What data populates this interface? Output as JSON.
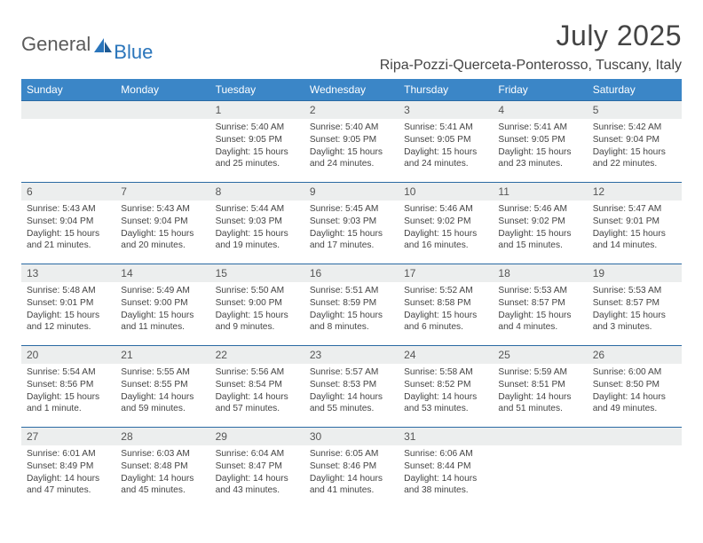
{
  "brand": {
    "text1": "General",
    "text2": "Blue",
    "color1": "#5b5b5b",
    "color2": "#2a75bb"
  },
  "title": "July 2025",
  "location": "Ripa-Pozzi-Querceta-Ponterosso, Tuscany, Italy",
  "colors": {
    "header_bg": "#3b86c7",
    "header_text": "#ffffff",
    "row_divider": "#2a6aa3",
    "daynum_bg": "#eceeee",
    "body_text": "#444444"
  },
  "font": {
    "family": "Arial",
    "title_size": 32,
    "location_size": 16,
    "th_size": 12,
    "daynum_size": 12,
    "body_size": 10.2
  },
  "weekdays": [
    "Sunday",
    "Monday",
    "Tuesday",
    "Wednesday",
    "Thursday",
    "Friday",
    "Saturday"
  ],
  "weeks": [
    [
      {
        "n": "",
        "sunrise": "",
        "sunset": "",
        "daylight": ""
      },
      {
        "n": "",
        "sunrise": "",
        "sunset": "",
        "daylight": ""
      },
      {
        "n": "1",
        "sunrise": "5:40 AM",
        "sunset": "9:05 PM",
        "daylight": "15 hours and 25 minutes."
      },
      {
        "n": "2",
        "sunrise": "5:40 AM",
        "sunset": "9:05 PM",
        "daylight": "15 hours and 24 minutes."
      },
      {
        "n": "3",
        "sunrise": "5:41 AM",
        "sunset": "9:05 PM",
        "daylight": "15 hours and 24 minutes."
      },
      {
        "n": "4",
        "sunrise": "5:41 AM",
        "sunset": "9:05 PM",
        "daylight": "15 hours and 23 minutes."
      },
      {
        "n": "5",
        "sunrise": "5:42 AM",
        "sunset": "9:04 PM",
        "daylight": "15 hours and 22 minutes."
      }
    ],
    [
      {
        "n": "6",
        "sunrise": "5:43 AM",
        "sunset": "9:04 PM",
        "daylight": "15 hours and 21 minutes."
      },
      {
        "n": "7",
        "sunrise": "5:43 AM",
        "sunset": "9:04 PM",
        "daylight": "15 hours and 20 minutes."
      },
      {
        "n": "8",
        "sunrise": "5:44 AM",
        "sunset": "9:03 PM",
        "daylight": "15 hours and 19 minutes."
      },
      {
        "n": "9",
        "sunrise": "5:45 AM",
        "sunset": "9:03 PM",
        "daylight": "15 hours and 17 minutes."
      },
      {
        "n": "10",
        "sunrise": "5:46 AM",
        "sunset": "9:02 PM",
        "daylight": "15 hours and 16 minutes."
      },
      {
        "n": "11",
        "sunrise": "5:46 AM",
        "sunset": "9:02 PM",
        "daylight": "15 hours and 15 minutes."
      },
      {
        "n": "12",
        "sunrise": "5:47 AM",
        "sunset": "9:01 PM",
        "daylight": "15 hours and 14 minutes."
      }
    ],
    [
      {
        "n": "13",
        "sunrise": "5:48 AM",
        "sunset": "9:01 PM",
        "daylight": "15 hours and 12 minutes."
      },
      {
        "n": "14",
        "sunrise": "5:49 AM",
        "sunset": "9:00 PM",
        "daylight": "15 hours and 11 minutes."
      },
      {
        "n": "15",
        "sunrise": "5:50 AM",
        "sunset": "9:00 PM",
        "daylight": "15 hours and 9 minutes."
      },
      {
        "n": "16",
        "sunrise": "5:51 AM",
        "sunset": "8:59 PM",
        "daylight": "15 hours and 8 minutes."
      },
      {
        "n": "17",
        "sunrise": "5:52 AM",
        "sunset": "8:58 PM",
        "daylight": "15 hours and 6 minutes."
      },
      {
        "n": "18",
        "sunrise": "5:53 AM",
        "sunset": "8:57 PM",
        "daylight": "15 hours and 4 minutes."
      },
      {
        "n": "19",
        "sunrise": "5:53 AM",
        "sunset": "8:57 PM",
        "daylight": "15 hours and 3 minutes."
      }
    ],
    [
      {
        "n": "20",
        "sunrise": "5:54 AM",
        "sunset": "8:56 PM",
        "daylight": "15 hours and 1 minute."
      },
      {
        "n": "21",
        "sunrise": "5:55 AM",
        "sunset": "8:55 PM",
        "daylight": "14 hours and 59 minutes."
      },
      {
        "n": "22",
        "sunrise": "5:56 AM",
        "sunset": "8:54 PM",
        "daylight": "14 hours and 57 minutes."
      },
      {
        "n": "23",
        "sunrise": "5:57 AM",
        "sunset": "8:53 PM",
        "daylight": "14 hours and 55 minutes."
      },
      {
        "n": "24",
        "sunrise": "5:58 AM",
        "sunset": "8:52 PM",
        "daylight": "14 hours and 53 minutes."
      },
      {
        "n": "25",
        "sunrise": "5:59 AM",
        "sunset": "8:51 PM",
        "daylight": "14 hours and 51 minutes."
      },
      {
        "n": "26",
        "sunrise": "6:00 AM",
        "sunset": "8:50 PM",
        "daylight": "14 hours and 49 minutes."
      }
    ],
    [
      {
        "n": "27",
        "sunrise": "6:01 AM",
        "sunset": "8:49 PM",
        "daylight": "14 hours and 47 minutes."
      },
      {
        "n": "28",
        "sunrise": "6:03 AM",
        "sunset": "8:48 PM",
        "daylight": "14 hours and 45 minutes."
      },
      {
        "n": "29",
        "sunrise": "6:04 AM",
        "sunset": "8:47 PM",
        "daylight": "14 hours and 43 minutes."
      },
      {
        "n": "30",
        "sunrise": "6:05 AM",
        "sunset": "8:46 PM",
        "daylight": "14 hours and 41 minutes."
      },
      {
        "n": "31",
        "sunrise": "6:06 AM",
        "sunset": "8:44 PM",
        "daylight": "14 hours and 38 minutes."
      },
      {
        "n": "",
        "sunrise": "",
        "sunset": "",
        "daylight": ""
      },
      {
        "n": "",
        "sunrise": "",
        "sunset": "",
        "daylight": ""
      }
    ]
  ],
  "labels": {
    "sunrise": "Sunrise:",
    "sunset": "Sunset:",
    "daylight": "Daylight:"
  }
}
